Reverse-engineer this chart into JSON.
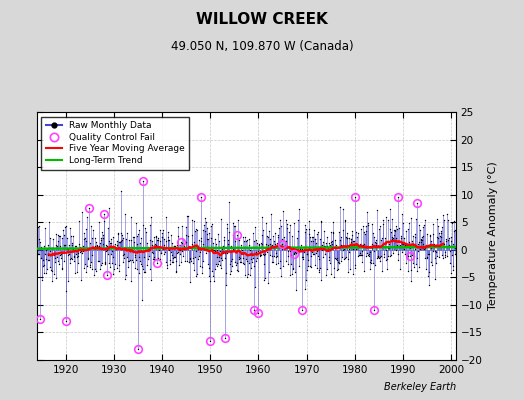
{
  "title": "WILLOW CREEK",
  "subtitle": "49.050 N, 109.870 W (Canada)",
  "ylabel": "Temperature Anomaly (°C)",
  "credit": "Berkeley Earth",
  "year_start": 1914,
  "year_end": 2001,
  "months_per_year": 12,
  "ylim": [
    -20,
    25
  ],
  "yticks": [
    -20,
    -15,
    -10,
    -5,
    0,
    5,
    10,
    15,
    20,
    25
  ],
  "xlim": [
    1914,
    2001
  ],
  "xticks": [
    1920,
    1930,
    1940,
    1950,
    1960,
    1970,
    1980,
    1990,
    2000
  ],
  "bg_color": "#d8d8d8",
  "plot_bg_color": "#ffffff",
  "raw_line_color": "#4444cc",
  "raw_dot_color": "#000000",
  "qc_fail_color": "#ff44ff",
  "moving_avg_color": "#ff0000",
  "trend_color": "#00bb00",
  "grid_color": "#bbbbbb",
  "seed": 42,
  "noise_scale": 2.8,
  "trend_value": 0.3
}
